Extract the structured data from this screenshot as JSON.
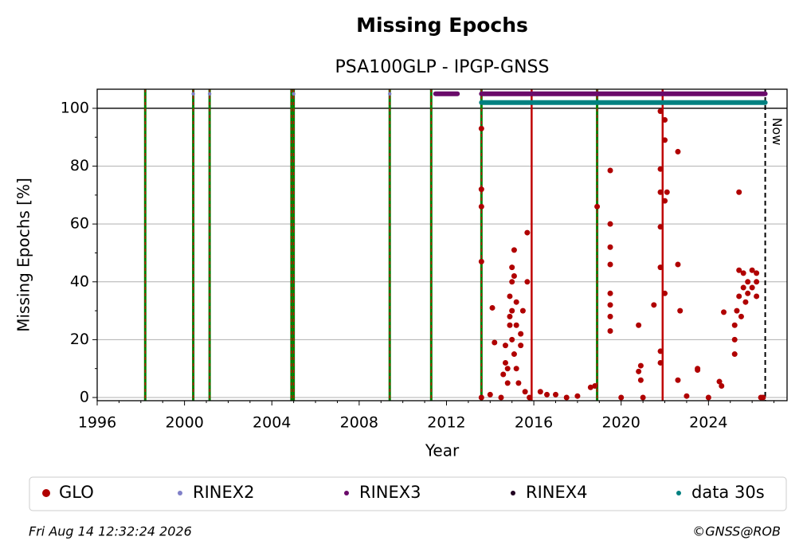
{
  "chart_data": {
    "type": "scatter",
    "title": "Missing Epochs",
    "subtitle": "PSA100GLP - IPGP-GNSS",
    "x_label": "Year",
    "y_label": "Missing Epochs [%]",
    "xlim": [
      1996,
      2027.6
    ],
    "ylim": [
      -1.1,
      106.6
    ],
    "xticks": [
      1996,
      2000,
      2004,
      2008,
      2012,
      2016,
      2020,
      2024
    ],
    "yticks": [
      0,
      20,
      40,
      60,
      80,
      100
    ],
    "grid": true,
    "reference_line": 100,
    "event_lines": [
      1998.2,
      2000.4,
      2001.15,
      2004.9,
      2005.0,
      2009.4,
      2011.3,
      2013.6,
      2018.9
    ],
    "red_lines": [
      2015.9,
      2021.9
    ],
    "now": {
      "x": 2026.6,
      "label": "Now"
    },
    "series": [
      {
        "name": "GLO",
        "color": "#b00000",
        "x": [
          2013.6,
          2013.6,
          2013.6,
          2013.6,
          2013.6,
          2014.0,
          2014.1,
          2014.2,
          2014.5,
          2014.6,
          2014.7,
          2014.7,
          2014.8,
          2014.8,
          2014.9,
          2014.9,
          2014.9,
          2015.0,
          2015.0,
          2015.0,
          2015.0,
          2015.1,
          2015.1,
          2015.1,
          2015.2,
          2015.2,
          2015.2,
          2015.3,
          2015.4,
          2015.4,
          2015.5,
          2015.6,
          2015.7,
          2015.7,
          2015.8,
          2016.3,
          2016.6,
          2017.0,
          2017.5,
          2018.0,
          2018.6,
          2018.8,
          2018.9,
          2019.5,
          2019.5,
          2019.5,
          2019.5,
          2019.5,
          2019.5,
          2019.5,
          2019.5,
          2020.0,
          2020.8,
          2020.8,
          2020.9,
          2020.9,
          2021.0,
          2021.5,
          2021.8,
          2021.8,
          2021.8,
          2021.8,
          2021.8,
          2021.8,
          2021.8,
          2022.0,
          2022.0,
          2022.0,
          2022.0,
          2022.1,
          2022.6,
          2022.6,
          2022.7,
          2022.6,
          2023.0,
          2023.5,
          2023.5,
          2024.0,
          2024.5,
          2024.6,
          2024.7,
          2025.2,
          2025.2,
          2025.2,
          2025.3,
          2025.4,
          2025.4,
          2025.4,
          2025.5,
          2025.6,
          2025.6,
          2025.7,
          2025.8,
          2025.8,
          2026.0,
          2026.0,
          2026.2,
          2026.2,
          2026.2,
          2026.4,
          2026.5
        ],
        "values": [
          0,
          47,
          66,
          72,
          93,
          1,
          31,
          19,
          0,
          8,
          18,
          12,
          5,
          10,
          35,
          25,
          28,
          40,
          45,
          30,
          20,
          51,
          42,
          15,
          33,
          25,
          10,
          5,
          22,
          18,
          30,
          2,
          40,
          57,
          0,
          2,
          1,
          1,
          0,
          0.5,
          3.5,
          4,
          66,
          78.5,
          60,
          52,
          46,
          36,
          32,
          28,
          23,
          0,
          25,
          9,
          11,
          6,
          0,
          32,
          59,
          45,
          16,
          12,
          99,
          79,
          71,
          96,
          89,
          68,
          36,
          71,
          85,
          46,
          30,
          6,
          0.5,
          10,
          9.5,
          0,
          5.5,
          4,
          29.5,
          15,
          20,
          25,
          30,
          71,
          44,
          35,
          28,
          38,
          43,
          33,
          40,
          36,
          44,
          38,
          43,
          40,
          35,
          0,
          0
        ]
      },
      {
        "name": "RINEX2",
        "color": "#8080c8",
        "x": [
          2000.4,
          2001.15,
          2005.0,
          2009.4
        ],
        "values": [
          105,
          105,
          105,
          105
        ]
      },
      {
        "name": "RINEX3",
        "color": "#6a0a6a",
        "spans": [
          [
            2011.5,
            2012.5
          ],
          [
            2013.6,
            2026.6
          ]
        ],
        "values": [
          105,
          105
        ]
      },
      {
        "name": "RINEX4",
        "color": "#200020",
        "x": [],
        "values": []
      },
      {
        "name": "data 30s",
        "color": "#008080",
        "spans": [
          [
            2013.6,
            2026.6
          ]
        ],
        "values": [
          102
        ]
      }
    ],
    "footer_left": "Fri Aug 14 12:32:24 2026",
    "footer_right": "©GNSS@ROB"
  }
}
